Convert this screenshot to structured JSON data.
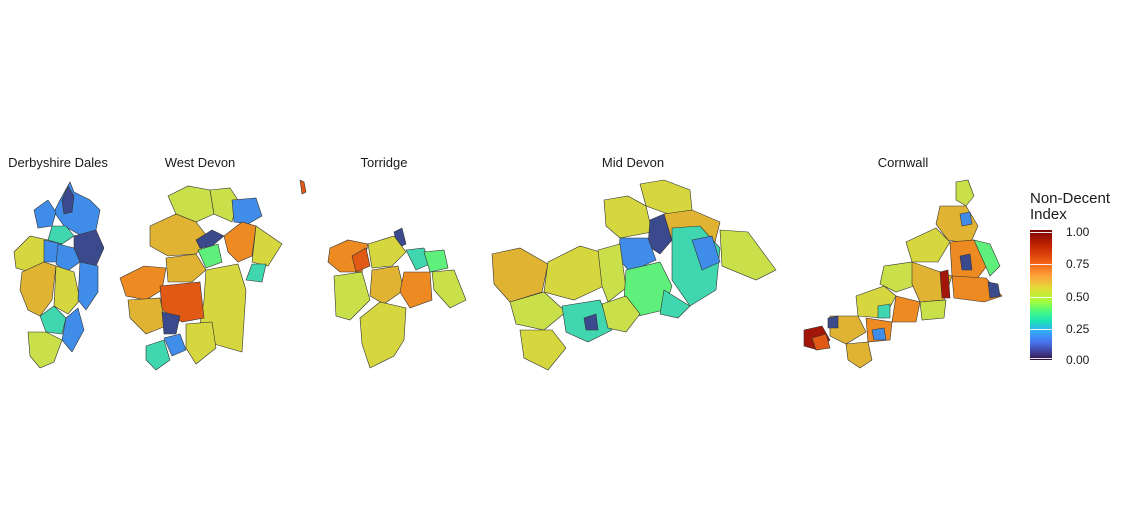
{
  "panels": [
    {
      "name": "Derbyshire Dales"
    },
    {
      "name": "West Devon"
    },
    {
      "name": "Torridge"
    },
    {
      "name": "Mid Devon"
    },
    {
      "name": "Cornwall"
    }
  ],
  "legend": {
    "title_line1": "Non-Decent",
    "title_line2": "Index",
    "ticks": [
      "1.00",
      "0.75",
      "0.50",
      "0.25",
      "0.00"
    ],
    "colormap": "turbo"
  },
  "palette": {
    "dark_blue": "#3b4a8c",
    "blue": "#3f8de8",
    "teal": "#3fd6b0",
    "green": "#5ef07a",
    "yellow_green": "#c9e04a",
    "yellow": "#d6d63e",
    "gold": "#e0b432",
    "orange": "#ee8a22",
    "red_orange": "#e05a16",
    "dark_red": "#a3160a"
  }
}
